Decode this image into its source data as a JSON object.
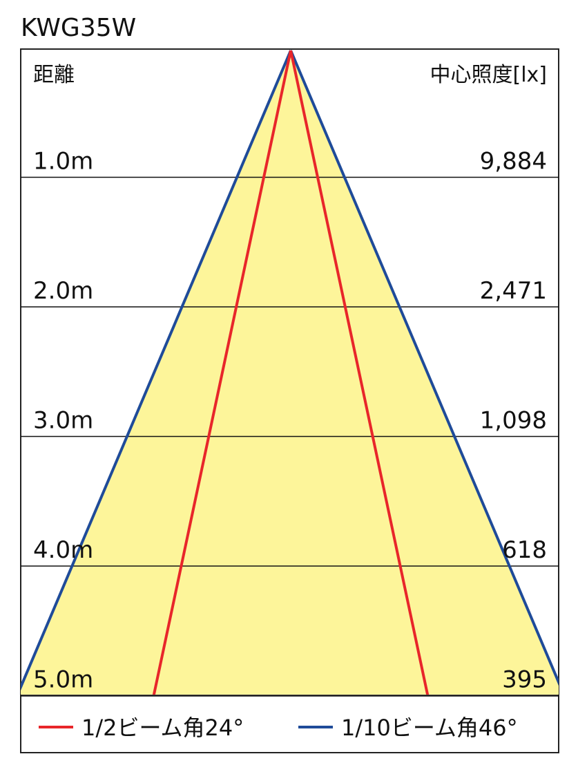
{
  "title": "KWG35W",
  "header": {
    "distance_label": "距離",
    "illuminance_label": "中心照度[lx]"
  },
  "rows": [
    {
      "distance": "1.0m",
      "illuminance": "9,884"
    },
    {
      "distance": "2.0m",
      "illuminance": "2,471"
    },
    {
      "distance": "3.0m",
      "illuminance": "1,098"
    },
    {
      "distance": "4.0m",
      "illuminance": "618"
    },
    {
      "distance": "5.0m",
      "illuminance": "395"
    }
  ],
  "legend": {
    "half_beam": {
      "label": "1/2ビーム角24°",
      "angle_deg": 24,
      "color": "#e8262a"
    },
    "tenth_beam": {
      "label": "1/10ビーム角46°",
      "angle_deg": 46,
      "color": "#1f4b99"
    }
  },
  "colors": {
    "fill": "#fdf59a",
    "grid": "#111111"
  }
}
